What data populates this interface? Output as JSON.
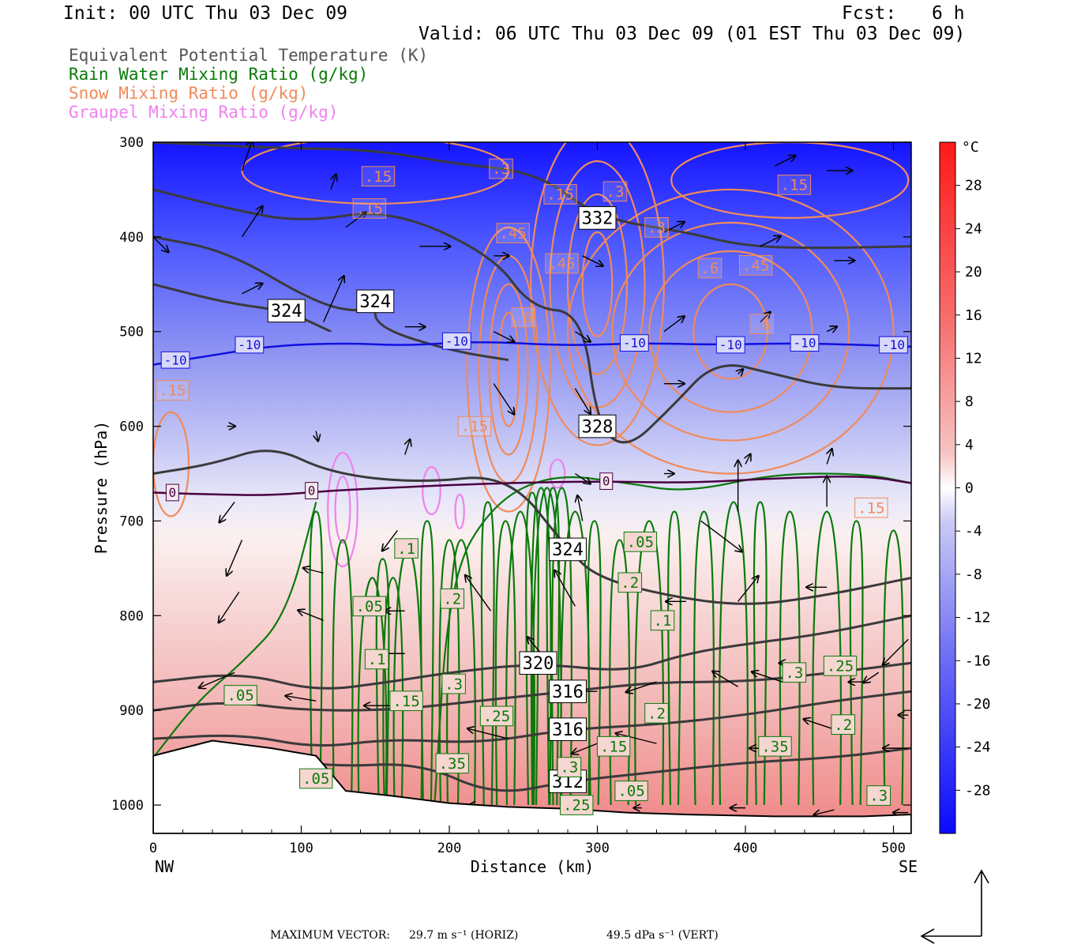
{
  "header": {
    "init": "Init: 00 UTC Thu 03 Dec 09",
    "fcst_label": "Fcst:",
    "fcst_value": "6 h",
    "valid": "Valid: 06 UTC Thu 03 Dec 09 (01 EST Thu 03 Dec 09)"
  },
  "legend": [
    {
      "text": "Equivalent Potential Temperature (K)",
      "color": "#555555"
    },
    {
      "text": "Rain Water Mixing Ratio (g/kg)",
      "color": "#0a7a0a"
    },
    {
      "text": "Snow Mixing Ratio (g/kg)",
      "color": "#f08a5a"
    },
    {
      "text": "Graupel Mixing Ratio (g/kg)",
      "color": "#ee82ee"
    }
  ],
  "footer": {
    "max_vector_label": "MAXIMUM VECTOR:",
    "horiz": "29.7 m s⁻¹ (HORIZ)",
    "vert": "49.5 dPa s⁻¹ (VERT)"
  },
  "chart_data": {
    "type": "cross-section",
    "title": "",
    "xlabel": "Distance (km)",
    "ylabel": "Pressure (hPa)",
    "xlim": [
      0,
      512
    ],
    "ylim": [
      1030,
      300
    ],
    "x_ticks": [
      0,
      100,
      200,
      300,
      400,
      500
    ],
    "y_ticks": [
      300,
      400,
      500,
      600,
      700,
      800,
      900,
      1000
    ],
    "x_end_labels": {
      "left": "NW",
      "right": "SE"
    },
    "colorbar": {
      "unit": "°C",
      "ticks": [
        28,
        24,
        20,
        16,
        12,
        8,
        4,
        0,
        -4,
        -8,
        -12,
        -16,
        -20,
        -24,
        -28
      ],
      "range": [
        -32,
        32
      ]
    },
    "theta_e_contours": [
      {
        "label": "332",
        "points": [
          [
            0,
            300
          ],
          [
            80,
            306
          ],
          [
            150,
            308
          ],
          [
            200,
            322
          ],
          [
            260,
            332
          ],
          [
            300,
            380
          ],
          [
            360,
            395
          ],
          [
            400,
            410
          ],
          [
            450,
            412
          ],
          [
            512,
            410
          ]
        ]
      },
      {
        "label": "328",
        "points": [
          [
            0,
            350
          ],
          [
            50,
            370
          ],
          [
            100,
            385
          ],
          [
            160,
            370
          ],
          [
            230,
            420
          ],
          [
            255,
            475
          ],
          [
            290,
            480
          ],
          [
            300,
            600
          ],
          [
            320,
            625
          ],
          [
            350,
            580
          ],
          [
            380,
            530
          ],
          [
            420,
            545
          ],
          [
            460,
            560
          ],
          [
            512,
            560
          ]
        ]
      },
      {
        "label": "324",
        "points": [
          [
            0,
            400
          ],
          [
            50,
            415
          ],
          [
            110,
            470
          ],
          [
            140,
            480
          ],
          [
            150,
            468
          ],
          [
            150,
            495
          ],
          [
            200,
            520
          ],
          [
            240,
            530
          ]
        ]
      },
      {
        "label": "324",
        "points": [
          [
            0,
            450
          ],
          [
            50,
            470
          ],
          [
            90,
            478
          ],
          [
            120,
            500
          ]
        ]
      },
      {
        "label": "324",
        "points": [
          [
            0,
            650
          ],
          [
            40,
            640
          ],
          [
            80,
            620
          ],
          [
            120,
            650
          ],
          [
            180,
            660
          ],
          [
            240,
            650
          ],
          [
            280,
            730
          ],
          [
            300,
            760
          ],
          [
            350,
            780
          ],
          [
            400,
            790
          ],
          [
            450,
            780
          ],
          [
            512,
            760
          ]
        ]
      },
      {
        "label": "320",
        "points": [
          [
            0,
            870
          ],
          [
            60,
            860
          ],
          [
            110,
            880
          ],
          [
            160,
            870
          ],
          [
            200,
            860
          ],
          [
            260,
            850
          ],
          [
            320,
            860
          ],
          [
            360,
            840
          ],
          [
            400,
            830
          ],
          [
            450,
            820
          ],
          [
            512,
            800
          ]
        ]
      },
      {
        "label": "316",
        "points": [
          [
            0,
            900
          ],
          [
            50,
            890
          ],
          [
            100,
            900
          ],
          [
            160,
            900
          ],
          [
            220,
            890
          ],
          [
            280,
            880
          ],
          [
            340,
            870
          ],
          [
            400,
            870
          ],
          [
            460,
            860
          ],
          [
            512,
            850
          ]
        ]
      },
      {
        "label": "316",
        "points": [
          [
            0,
            930
          ],
          [
            60,
            925
          ],
          [
            110,
            940
          ],
          [
            160,
            930
          ],
          [
            220,
            935
          ],
          [
            280,
            920
          ],
          [
            340,
            915
          ],
          [
            400,
            905
          ],
          [
            460,
            890
          ],
          [
            512,
            880
          ]
        ]
      },
      {
        "label": "312",
        "points": [
          [
            0,
            950
          ],
          [
            60,
            945
          ],
          [
            120,
            960
          ],
          [
            180,
            955
          ],
          [
            230,
            990
          ],
          [
            280,
            975
          ],
          [
            340,
            965
          ],
          [
            400,
            955
          ],
          [
            460,
            950
          ],
          [
            512,
            940
          ]
        ]
      }
    ],
    "isotherm_minus10": {
      "label": "-10",
      "points": [
        [
          0,
          535
        ],
        [
          40,
          525
        ],
        [
          80,
          515
        ],
        [
          130,
          512
        ],
        [
          170,
          515
        ],
        [
          220,
          510
        ],
        [
          280,
          515
        ],
        [
          330,
          512
        ],
        [
          380,
          514
        ],
        [
          440,
          512
        ],
        [
          512,
          516
        ]
      ]
    },
    "isotherm_zero": {
      "label": "0",
      "points": [
        [
          0,
          670
        ],
        [
          40,
          672
        ],
        [
          80,
          673
        ],
        [
          120,
          668
        ],
        [
          160,
          665
        ],
        [
          200,
          662
        ],
        [
          240,
          660
        ],
        [
          300,
          658
        ],
        [
          360,
          660
        ],
        [
          420,
          655
        ],
        [
          480,
          652
        ],
        [
          512,
          660
        ]
      ]
    },
    "surface": [
      [
        0,
        948
      ],
      [
        40,
        932
      ],
      [
        80,
        940
      ],
      [
        110,
        948
      ],
      [
        130,
        985
      ],
      [
        160,
        990
      ],
      [
        200,
        998
      ],
      [
        240,
        1002
      ],
      [
        280,
        1004
      ],
      [
        320,
        1008
      ],
      [
        360,
        1010
      ],
      [
        420,
        1012
      ],
      [
        480,
        1012
      ],
      [
        512,
        1010
      ]
    ],
    "snow_contours_labels": [
      ".15",
      ".3",
      ".45",
      ".6"
    ],
    "rain_contours_labels": [
      ".05",
      ".1",
      ".15",
      ".2",
      ".25",
      ".3",
      ".35"
    ]
  }
}
